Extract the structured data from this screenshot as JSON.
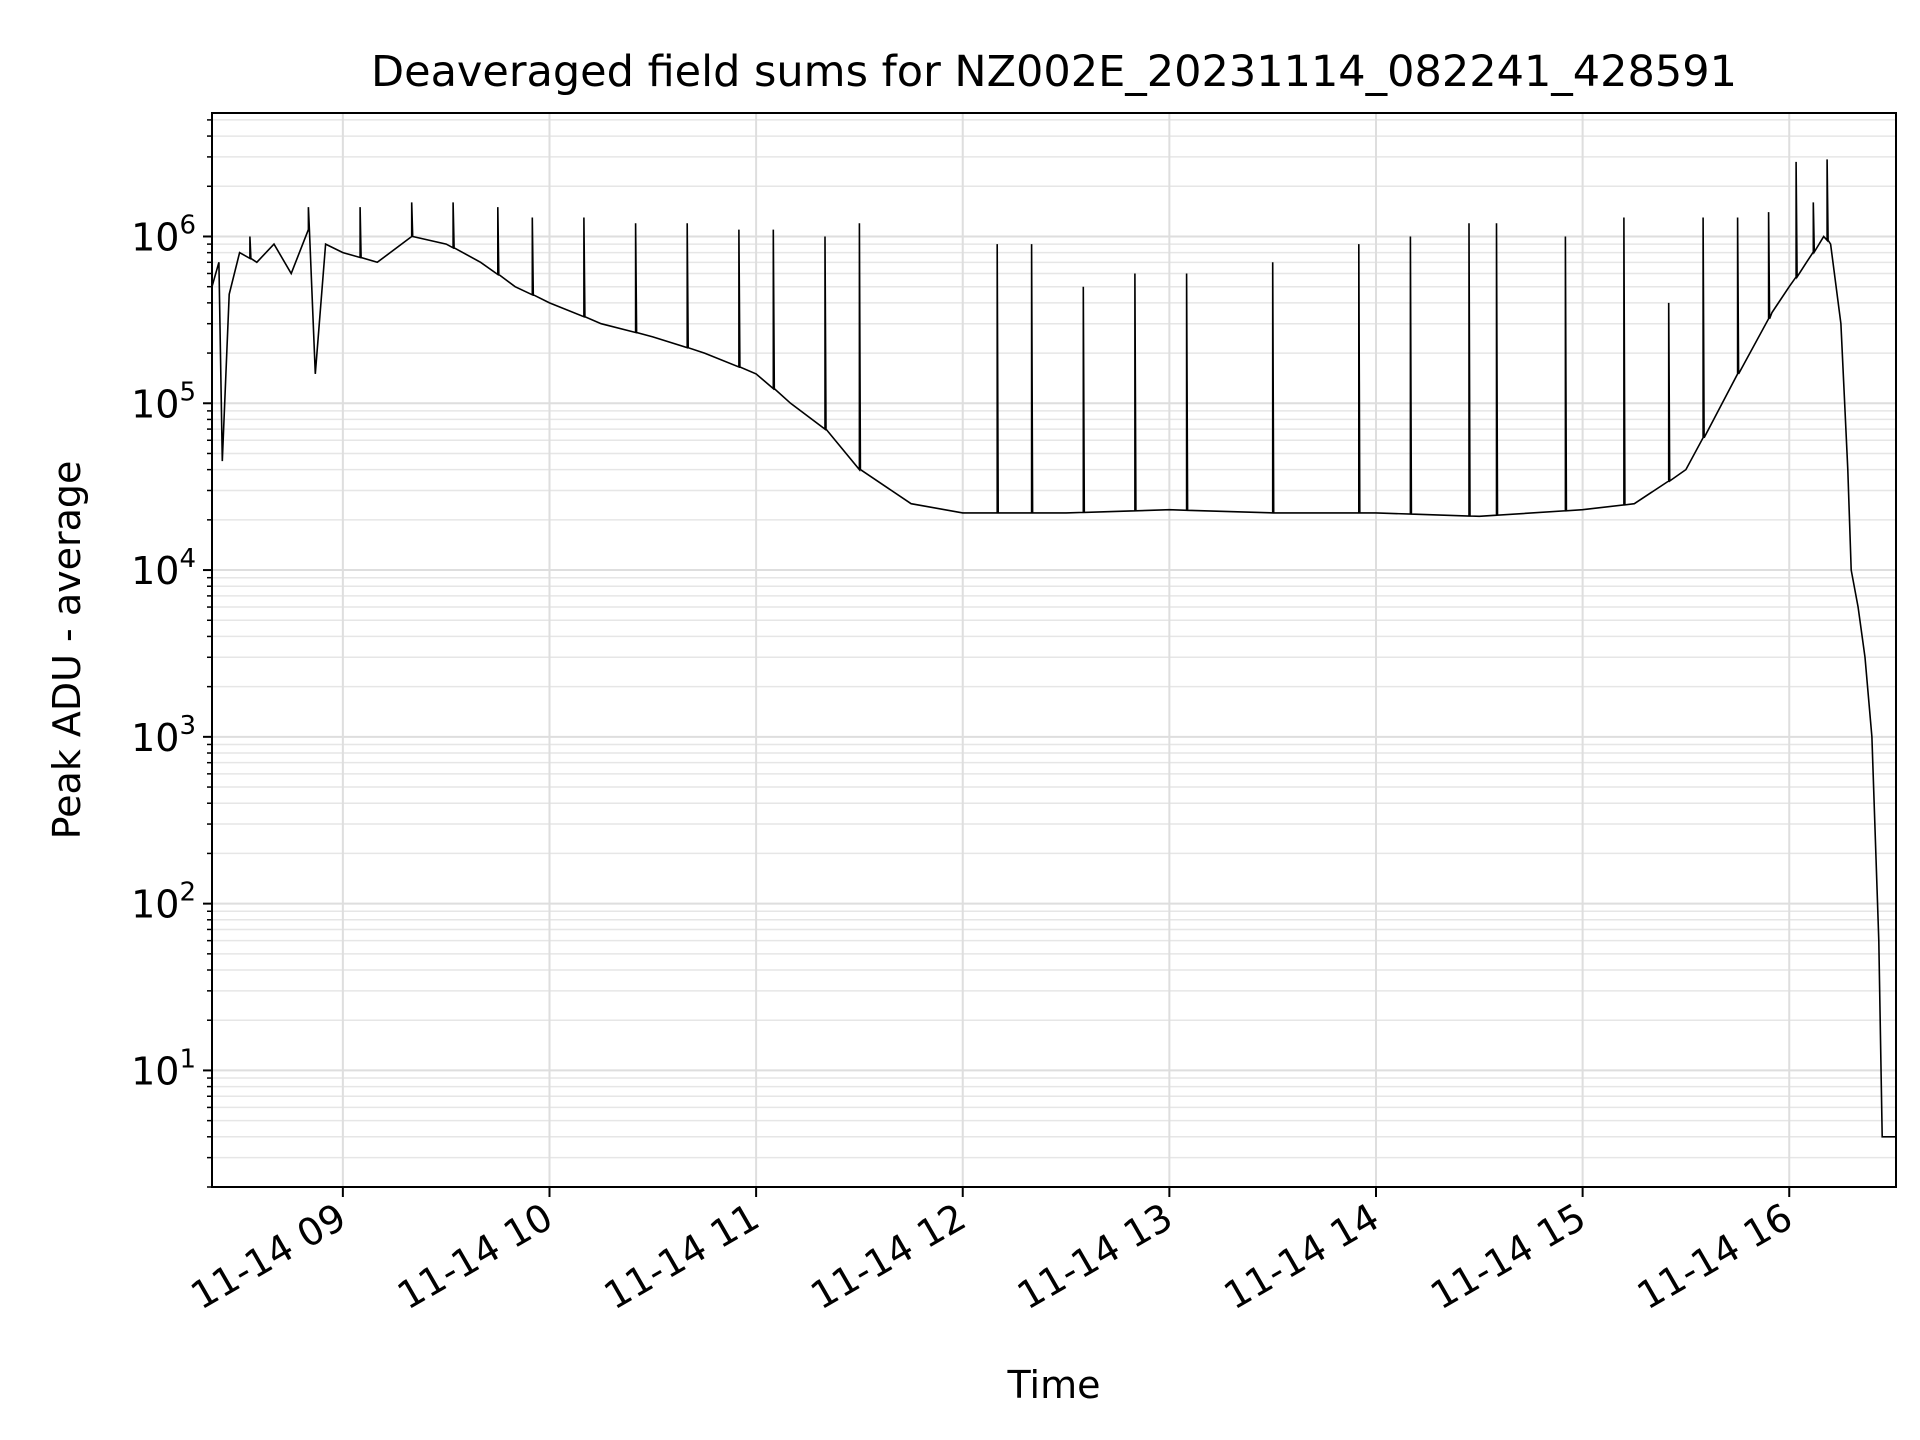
{
  "chart_data": {
    "type": "line",
    "title": "Deaveraged field sums for NZ002E_20231114_082241_428591",
    "xlabel": "Time",
    "ylabel": "Peak ADU - average",
    "yscale": "log",
    "xlim": [
      "2023-11-14 08:22",
      "2023-11-14 16:31"
    ],
    "ylim": [
      2,
      5500000
    ],
    "grid": true,
    "grid_minor": true,
    "line_color": "#000000",
    "x_ticks": [
      {
        "label": "11-14 09",
        "t": "2023-11-14 09:00"
      },
      {
        "label": "11-14 10",
        "t": "2023-11-14 10:00"
      },
      {
        "label": "11-14 11",
        "t": "2023-11-14 11:00"
      },
      {
        "label": "11-14 12",
        "t": "2023-11-14 12:00"
      },
      {
        "label": "11-14 13",
        "t": "2023-11-14 13:00"
      },
      {
        "label": "11-14 14",
        "t": "2023-11-14 14:00"
      },
      {
        "label": "11-14 15",
        "t": "2023-11-14 15:00"
      },
      {
        "label": "11-14 16",
        "t": "2023-11-14 16:00"
      }
    ],
    "y_ticks": [
      {
        "base": "10",
        "exp": "1",
        "value": 10
      },
      {
        "base": "10",
        "exp": "2",
        "value": 100
      },
      {
        "base": "10",
        "exp": "3",
        "value": 1000
      },
      {
        "base": "10",
        "exp": "4",
        "value": 10000
      },
      {
        "base": "10",
        "exp": "5",
        "value": 100000
      },
      {
        "base": "10",
        "exp": "6",
        "value": 1000000
      }
    ],
    "series": [
      {
        "points": [
          [
            "2023-11-14 08:22",
            500000
          ],
          [
            "2023-11-14 08:24",
            700000
          ],
          [
            "2023-11-14 08:25",
            45000
          ],
          [
            "2023-11-14 08:27",
            450000
          ],
          [
            "2023-11-14 08:30",
            800000
          ],
          [
            "2023-11-14 08:35",
            700000
          ],
          [
            "2023-11-14 08:40",
            900000
          ],
          [
            "2023-11-14 08:45",
            600000
          ],
          [
            "2023-11-14 08:50",
            1100000
          ],
          [
            "2023-11-14 08:52",
            150000
          ],
          [
            "2023-11-14 08:55",
            900000
          ],
          [
            "2023-11-14 09:00",
            800000
          ],
          [
            "2023-11-14 09:10",
            700000
          ],
          [
            "2023-11-14 09:20",
            1000000
          ],
          [
            "2023-11-14 09:30",
            900000
          ],
          [
            "2023-11-14 09:40",
            700000
          ],
          [
            "2023-11-14 09:50",
            500000
          ],
          [
            "2023-11-14 10:00",
            400000
          ],
          [
            "2023-11-14 10:15",
            300000
          ],
          [
            "2023-11-14 10:30",
            250000
          ],
          [
            "2023-11-14 10:45",
            200000
          ],
          [
            "2023-11-14 11:00",
            150000
          ],
          [
            "2023-11-14 11:10",
            100000
          ],
          [
            "2023-11-14 11:20",
            70000
          ],
          [
            "2023-11-14 11:30",
            40000
          ],
          [
            "2023-11-14 11:45",
            25000
          ],
          [
            "2023-11-14 12:00",
            22000
          ],
          [
            "2023-11-14 12:30",
            22000
          ],
          [
            "2023-11-14 13:00",
            23000
          ],
          [
            "2023-11-14 13:30",
            22000
          ],
          [
            "2023-11-14 14:00",
            22000
          ],
          [
            "2023-11-14 14:30",
            21000
          ],
          [
            "2023-11-14 15:00",
            23000
          ],
          [
            "2023-11-14 15:15",
            25000
          ],
          [
            "2023-11-14 15:30",
            40000
          ],
          [
            "2023-11-14 15:45",
            150000
          ],
          [
            "2023-11-14 15:55",
            350000
          ],
          [
            "2023-11-14 16:00",
            500000
          ],
          [
            "2023-11-14 16:05",
            700000
          ],
          [
            "2023-11-14 16:10",
            1000000
          ],
          [
            "2023-11-14 16:12",
            900000
          ],
          [
            "2023-11-14 16:15",
            300000
          ],
          [
            "2023-11-14 16:17",
            40000
          ],
          [
            "2023-11-14 16:18",
            10000
          ],
          [
            "2023-11-14 16:20",
            6000
          ],
          [
            "2023-11-14 16:22",
            3000
          ],
          [
            "2023-11-14 16:24",
            1000
          ],
          [
            "2023-11-14 16:26",
            60
          ],
          [
            "2023-11-14 16:27",
            4
          ],
          [
            "2023-11-14 16:31",
            4
          ]
        ],
        "spikes": [
          [
            "2023-11-14 08:33",
            1000000
          ],
          [
            "2023-11-14 08:50",
            1500000
          ],
          [
            "2023-11-14 09:05",
            1500000
          ],
          [
            "2023-11-14 09:20",
            1600000
          ],
          [
            "2023-11-14 09:32",
            1600000
          ],
          [
            "2023-11-14 09:45",
            1500000
          ],
          [
            "2023-11-14 09:55",
            1300000
          ],
          [
            "2023-11-14 10:10",
            1300000
          ],
          [
            "2023-11-14 10:25",
            1200000
          ],
          [
            "2023-11-14 10:40",
            1200000
          ],
          [
            "2023-11-14 10:55",
            1100000
          ],
          [
            "2023-11-14 11:05",
            1100000
          ],
          [
            "2023-11-14 11:20",
            1000000
          ],
          [
            "2023-11-14 11:30",
            1200000
          ],
          [
            "2023-11-14 12:10",
            900000
          ],
          [
            "2023-11-14 12:20",
            900000
          ],
          [
            "2023-11-14 12:35",
            500000
          ],
          [
            "2023-11-14 12:50",
            600000
          ],
          [
            "2023-11-14 13:05",
            600000
          ],
          [
            "2023-11-14 13:30",
            700000
          ],
          [
            "2023-11-14 13:55",
            900000
          ],
          [
            "2023-11-14 14:10",
            1000000
          ],
          [
            "2023-11-14 14:27",
            1200000
          ],
          [
            "2023-11-14 14:35",
            1200000
          ],
          [
            "2023-11-14 14:55",
            1000000
          ],
          [
            "2023-11-14 15:12",
            1300000
          ],
          [
            "2023-11-14 15:25",
            400000
          ],
          [
            "2023-11-14 15:35",
            1300000
          ],
          [
            "2023-11-14 15:45",
            1300000
          ],
          [
            "2023-11-14 15:54",
            1400000
          ],
          [
            "2023-11-14 16:02",
            2800000
          ],
          [
            "2023-11-14 16:07",
            1600000
          ],
          [
            "2023-11-14 16:11",
            2900000
          ]
        ]
      }
    ]
  }
}
